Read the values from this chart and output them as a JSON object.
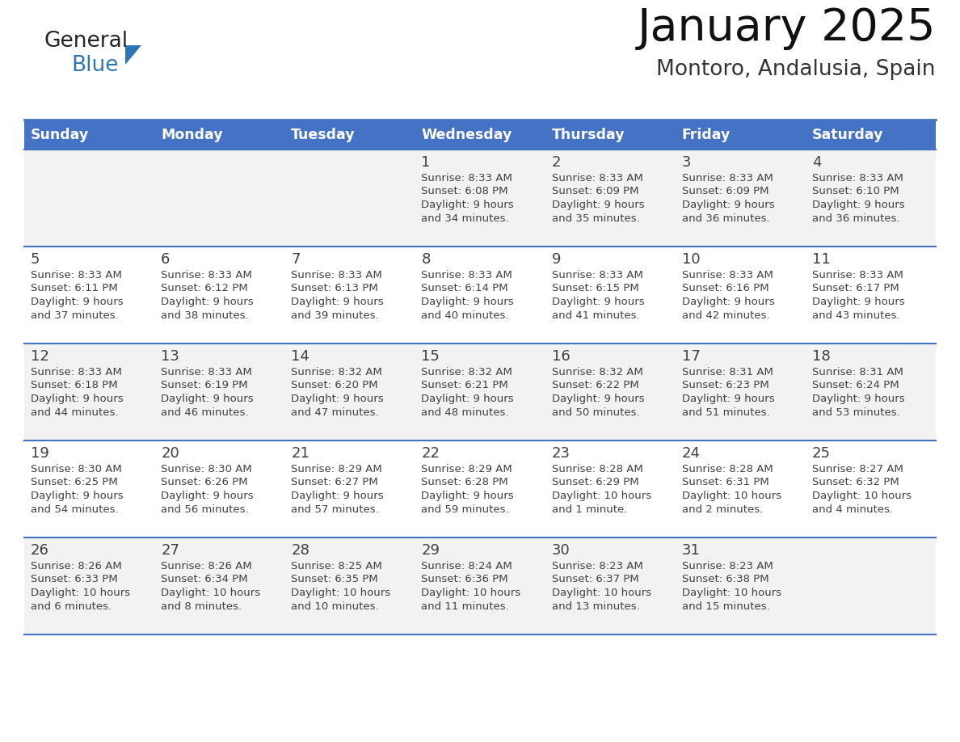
{
  "title": "January 2025",
  "subtitle": "Montoro, Andalusia, Spain",
  "header_color": "#4472C4",
  "header_text_color": "#FFFFFF",
  "day_names": [
    "Sunday",
    "Monday",
    "Tuesday",
    "Wednesday",
    "Thursday",
    "Friday",
    "Saturday"
  ],
  "row_bg_even": "#F2F2F2",
  "row_bg_odd": "#FFFFFF",
  "border_color": "#4472C4",
  "text_color": "#404040",
  "number_color": "#404040",
  "logo_general_color": "#222222",
  "logo_blue_color": "#2E75B6",
  "logo_triangle_color": "#2E75B6",
  "title_color": "#111111",
  "subtitle_color": "#333333",
  "days": [
    {
      "day": 1,
      "col": 3,
      "row": 0,
      "sunrise": "8:33 AM",
      "sunset": "6:08 PM",
      "daylight_line1": "Daylight: 9 hours",
      "daylight_line2": "and 34 minutes."
    },
    {
      "day": 2,
      "col": 4,
      "row": 0,
      "sunrise": "8:33 AM",
      "sunset": "6:09 PM",
      "daylight_line1": "Daylight: 9 hours",
      "daylight_line2": "and 35 minutes."
    },
    {
      "day": 3,
      "col": 5,
      "row": 0,
      "sunrise": "8:33 AM",
      "sunset": "6:09 PM",
      "daylight_line1": "Daylight: 9 hours",
      "daylight_line2": "and 36 minutes."
    },
    {
      "day": 4,
      "col": 6,
      "row": 0,
      "sunrise": "8:33 AM",
      "sunset": "6:10 PM",
      "daylight_line1": "Daylight: 9 hours",
      "daylight_line2": "and 36 minutes."
    },
    {
      "day": 5,
      "col": 0,
      "row": 1,
      "sunrise": "8:33 AM",
      "sunset": "6:11 PM",
      "daylight_line1": "Daylight: 9 hours",
      "daylight_line2": "and 37 minutes."
    },
    {
      "day": 6,
      "col": 1,
      "row": 1,
      "sunrise": "8:33 AM",
      "sunset": "6:12 PM",
      "daylight_line1": "Daylight: 9 hours",
      "daylight_line2": "and 38 minutes."
    },
    {
      "day": 7,
      "col": 2,
      "row": 1,
      "sunrise": "8:33 AM",
      "sunset": "6:13 PM",
      "daylight_line1": "Daylight: 9 hours",
      "daylight_line2": "and 39 minutes."
    },
    {
      "day": 8,
      "col": 3,
      "row": 1,
      "sunrise": "8:33 AM",
      "sunset": "6:14 PM",
      "daylight_line1": "Daylight: 9 hours",
      "daylight_line2": "and 40 minutes."
    },
    {
      "day": 9,
      "col": 4,
      "row": 1,
      "sunrise": "8:33 AM",
      "sunset": "6:15 PM",
      "daylight_line1": "Daylight: 9 hours",
      "daylight_line2": "and 41 minutes."
    },
    {
      "day": 10,
      "col": 5,
      "row": 1,
      "sunrise": "8:33 AM",
      "sunset": "6:16 PM",
      "daylight_line1": "Daylight: 9 hours",
      "daylight_line2": "and 42 minutes."
    },
    {
      "day": 11,
      "col": 6,
      "row": 1,
      "sunrise": "8:33 AM",
      "sunset": "6:17 PM",
      "daylight_line1": "Daylight: 9 hours",
      "daylight_line2": "and 43 minutes."
    },
    {
      "day": 12,
      "col": 0,
      "row": 2,
      "sunrise": "8:33 AM",
      "sunset": "6:18 PM",
      "daylight_line1": "Daylight: 9 hours",
      "daylight_line2": "and 44 minutes."
    },
    {
      "day": 13,
      "col": 1,
      "row": 2,
      "sunrise": "8:33 AM",
      "sunset": "6:19 PM",
      "daylight_line1": "Daylight: 9 hours",
      "daylight_line2": "and 46 minutes."
    },
    {
      "day": 14,
      "col": 2,
      "row": 2,
      "sunrise": "8:32 AM",
      "sunset": "6:20 PM",
      "daylight_line1": "Daylight: 9 hours",
      "daylight_line2": "and 47 minutes."
    },
    {
      "day": 15,
      "col": 3,
      "row": 2,
      "sunrise": "8:32 AM",
      "sunset": "6:21 PM",
      "daylight_line1": "Daylight: 9 hours",
      "daylight_line2": "and 48 minutes."
    },
    {
      "day": 16,
      "col": 4,
      "row": 2,
      "sunrise": "8:32 AM",
      "sunset": "6:22 PM",
      "daylight_line1": "Daylight: 9 hours",
      "daylight_line2": "and 50 minutes."
    },
    {
      "day": 17,
      "col": 5,
      "row": 2,
      "sunrise": "8:31 AM",
      "sunset": "6:23 PM",
      "daylight_line1": "Daylight: 9 hours",
      "daylight_line2": "and 51 minutes."
    },
    {
      "day": 18,
      "col": 6,
      "row": 2,
      "sunrise": "8:31 AM",
      "sunset": "6:24 PM",
      "daylight_line1": "Daylight: 9 hours",
      "daylight_line2": "and 53 minutes."
    },
    {
      "day": 19,
      "col": 0,
      "row": 3,
      "sunrise": "8:30 AM",
      "sunset": "6:25 PM",
      "daylight_line1": "Daylight: 9 hours",
      "daylight_line2": "and 54 minutes."
    },
    {
      "day": 20,
      "col": 1,
      "row": 3,
      "sunrise": "8:30 AM",
      "sunset": "6:26 PM",
      "daylight_line1": "Daylight: 9 hours",
      "daylight_line2": "and 56 minutes."
    },
    {
      "day": 21,
      "col": 2,
      "row": 3,
      "sunrise": "8:29 AM",
      "sunset": "6:27 PM",
      "daylight_line1": "Daylight: 9 hours",
      "daylight_line2": "and 57 minutes."
    },
    {
      "day": 22,
      "col": 3,
      "row": 3,
      "sunrise": "8:29 AM",
      "sunset": "6:28 PM",
      "daylight_line1": "Daylight: 9 hours",
      "daylight_line2": "and 59 minutes."
    },
    {
      "day": 23,
      "col": 4,
      "row": 3,
      "sunrise": "8:28 AM",
      "sunset": "6:29 PM",
      "daylight_line1": "Daylight: 10 hours",
      "daylight_line2": "and 1 minute."
    },
    {
      "day": 24,
      "col": 5,
      "row": 3,
      "sunrise": "8:28 AM",
      "sunset": "6:31 PM",
      "daylight_line1": "Daylight: 10 hours",
      "daylight_line2": "and 2 minutes."
    },
    {
      "day": 25,
      "col": 6,
      "row": 3,
      "sunrise": "8:27 AM",
      "sunset": "6:32 PM",
      "daylight_line1": "Daylight: 10 hours",
      "daylight_line2": "and 4 minutes."
    },
    {
      "day": 26,
      "col": 0,
      "row": 4,
      "sunrise": "8:26 AM",
      "sunset": "6:33 PM",
      "daylight_line1": "Daylight: 10 hours",
      "daylight_line2": "and 6 minutes."
    },
    {
      "day": 27,
      "col": 1,
      "row": 4,
      "sunrise": "8:26 AM",
      "sunset": "6:34 PM",
      "daylight_line1": "Daylight: 10 hours",
      "daylight_line2": "and 8 minutes."
    },
    {
      "day": 28,
      "col": 2,
      "row": 4,
      "sunrise": "8:25 AM",
      "sunset": "6:35 PM",
      "daylight_line1": "Daylight: 10 hours",
      "daylight_line2": "and 10 minutes."
    },
    {
      "day": 29,
      "col": 3,
      "row": 4,
      "sunrise": "8:24 AM",
      "sunset": "6:36 PM",
      "daylight_line1": "Daylight: 10 hours",
      "daylight_line2": "and 11 minutes."
    },
    {
      "day": 30,
      "col": 4,
      "row": 4,
      "sunrise": "8:23 AM",
      "sunset": "6:37 PM",
      "daylight_line1": "Daylight: 10 hours",
      "daylight_line2": "and 13 minutes."
    },
    {
      "day": 31,
      "col": 5,
      "row": 4,
      "sunrise": "8:23 AM",
      "sunset": "6:38 PM",
      "daylight_line1": "Daylight: 10 hours",
      "daylight_line2": "and 15 minutes."
    }
  ]
}
